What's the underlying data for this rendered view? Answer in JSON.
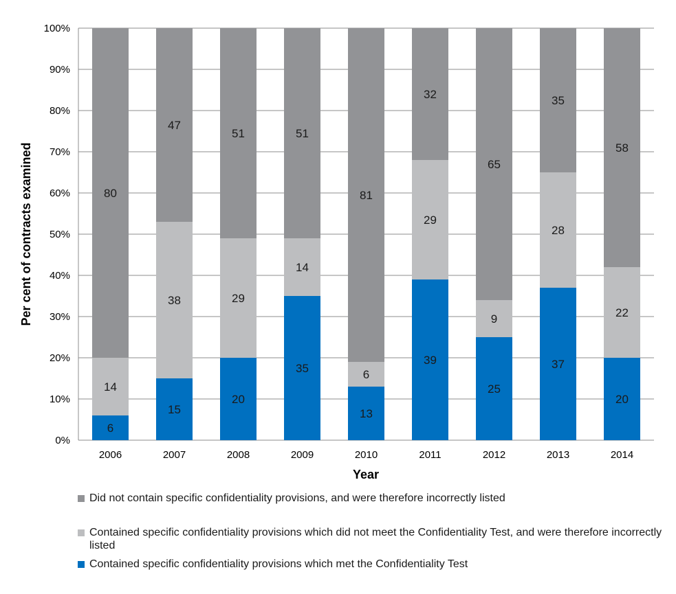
{
  "chart_data": {
    "type": "bar",
    "stacked": true,
    "categories": [
      "2006",
      "2007",
      "2008",
      "2009",
      "2010",
      "2011",
      "2012",
      "2013",
      "2014"
    ],
    "series": [
      {
        "name": "Contained specific confidentiality provisions which met the Confidentiality Test",
        "color": "#0070c0",
        "values": [
          6,
          15,
          20,
          35,
          13,
          39,
          25,
          37,
          20
        ]
      },
      {
        "name": "Contained specific confidentiality provisions which did not meet the Confidentiality Test, and were therefore incorrectly listed",
        "color": "#bdbec0",
        "values": [
          14,
          38,
          29,
          14,
          6,
          29,
          9,
          28,
          22
        ]
      },
      {
        "name": "Did not contain specific confidentiality provisions, and were therefore incorrectly listed",
        "color": "#929396",
        "values": [
          80,
          47,
          51,
          51,
          81,
          32,
          65,
          35,
          58
        ]
      }
    ],
    "xlabel": "Year",
    "ylabel": "Per cent of contracts examined",
    "ylim": [
      0,
      100
    ],
    "yticks": [
      "0%",
      "10%",
      "20%",
      "30%",
      "40%",
      "50%",
      "60%",
      "70%",
      "80%",
      "90%",
      "100%"
    ],
    "grid": true,
    "legend_position": "bottom"
  },
  "legend": [
    {
      "label": "Did not contain specific confidentiality provisions, and were therefore incorrectly listed",
      "color": "#929396"
    },
    {
      "label": "Contained specific confidentiality provisions which did not meet the Confidentiality Test, and were therefore incorrectly listed",
      "color": "#bdbec0"
    },
    {
      "label": "Contained specific confidentiality provisions which met the Confidentiality Test",
      "color": "#0070c0"
    }
  ]
}
